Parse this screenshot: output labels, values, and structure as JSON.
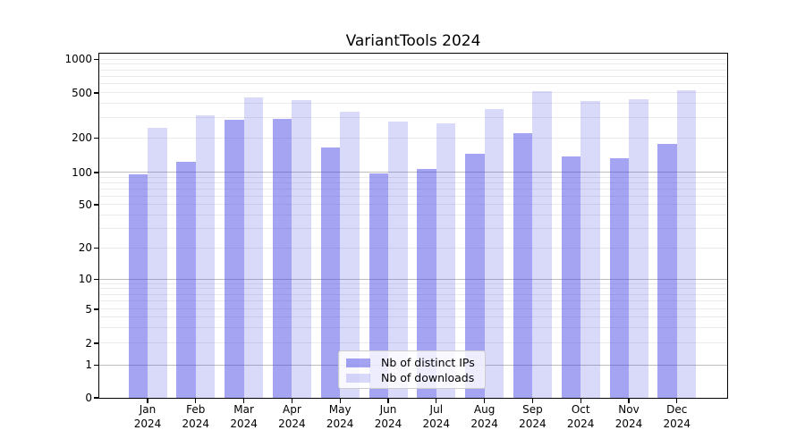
{
  "chart_data": {
    "type": "bar",
    "title": "VariantTools 2024",
    "categories": [
      "Jan",
      "Feb",
      "Mar",
      "Apr",
      "May",
      "Jun",
      "Jul",
      "Aug",
      "Sep",
      "Oct",
      "Nov",
      "Dec"
    ],
    "category_year": "2024",
    "series": [
      {
        "name": "Nb of distinct IPs",
        "color": "rgba(64,64,230,0.48)",
        "values": [
          96,
          125,
          293,
          297,
          166,
          98,
          108,
          147,
          222,
          138,
          133,
          178
        ]
      },
      {
        "name": "Nb of downloads",
        "color": "rgba(64,64,230,0.20)",
        "values": [
          245,
          320,
          457,
          432,
          340,
          281,
          268,
          360,
          516,
          428,
          437,
          528
        ]
      }
    ],
    "y_axis": {
      "scale": "symlog",
      "ticks": [
        0,
        1,
        2,
        5,
        10,
        20,
        50,
        100,
        200,
        500,
        1000
      ],
      "range": [
        0,
        1000
      ]
    },
    "x_axis": {
      "tick_label_lines": 2
    },
    "grid": true,
    "legend_position": "lower center",
    "colors": {
      "bar_base": "#4040e6",
      "grid_major": "#bdbdbd",
      "grid_minor": "#ebebeb",
      "axis": "#000000"
    }
  }
}
